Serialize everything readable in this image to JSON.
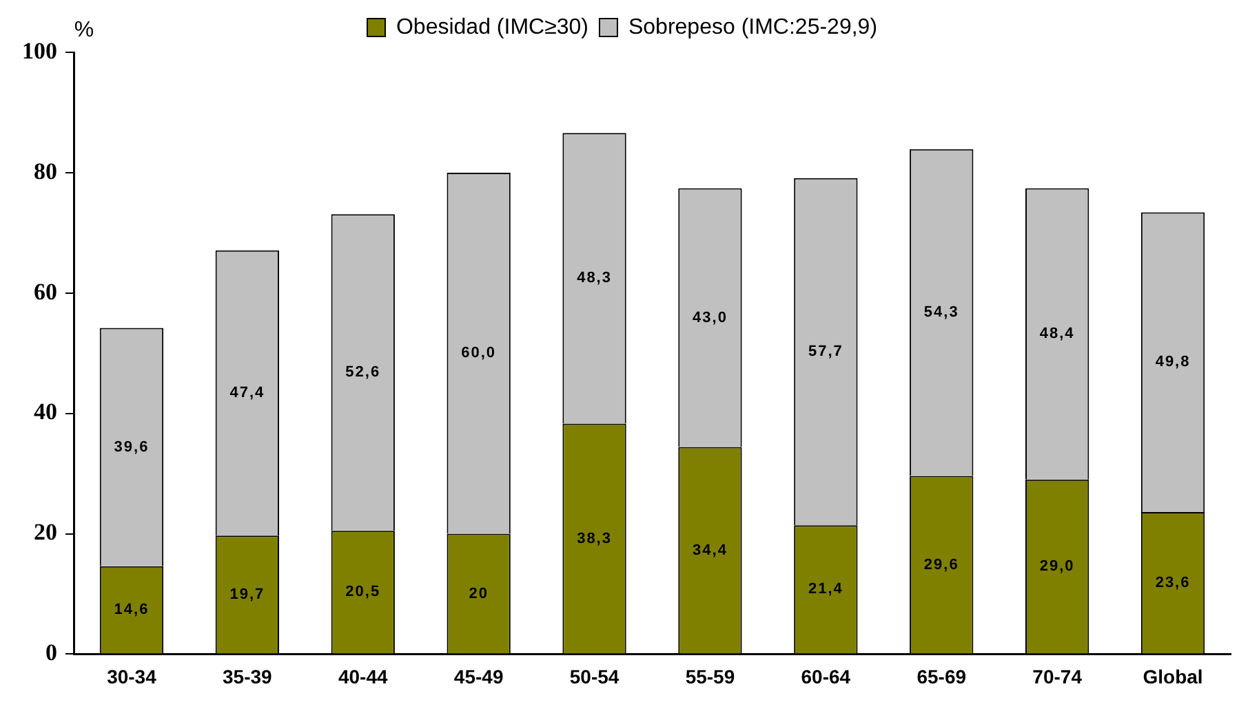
{
  "chart_data": {
    "type": "bar",
    "stacked": true,
    "ylabel": "%",
    "categories": [
      "30-34",
      "35-39",
      "40-44",
      "45-49",
      "50-54",
      "55-59",
      "60-64",
      "65-69",
      "70-74",
      "Global"
    ],
    "series": [
      {
        "name": "Obesidad (IMC≥30)",
        "color": "#808000",
        "values": [
          14.6,
          19.7,
          20.5,
          20,
          38.3,
          34.4,
          21.4,
          29.6,
          29.0,
          23.6
        ],
        "value_labels": [
          "14,6",
          "19,7",
          "20,5",
          "20",
          "38,3",
          "34,4",
          "21,4",
          "29,6",
          "29,0",
          "23,6"
        ]
      },
      {
        "name": "Sobrepeso (IMC:25-29,9)",
        "color": "#c0c0c0",
        "values": [
          39.6,
          47.4,
          52.6,
          60.0,
          48.3,
          43.0,
          57.7,
          54.3,
          48.4,
          49.8
        ],
        "value_labels": [
          "39,6",
          "47,4",
          "52,6",
          "60,0",
          "48,3",
          "43,0",
          "57,7",
          "54,3",
          "48,4",
          "49,8"
        ]
      }
    ],
    "ylim": [
      0,
      100
    ],
    "yticks": [
      0,
      20,
      40,
      60,
      80,
      100
    ],
    "grid": false,
    "legend": "top"
  }
}
